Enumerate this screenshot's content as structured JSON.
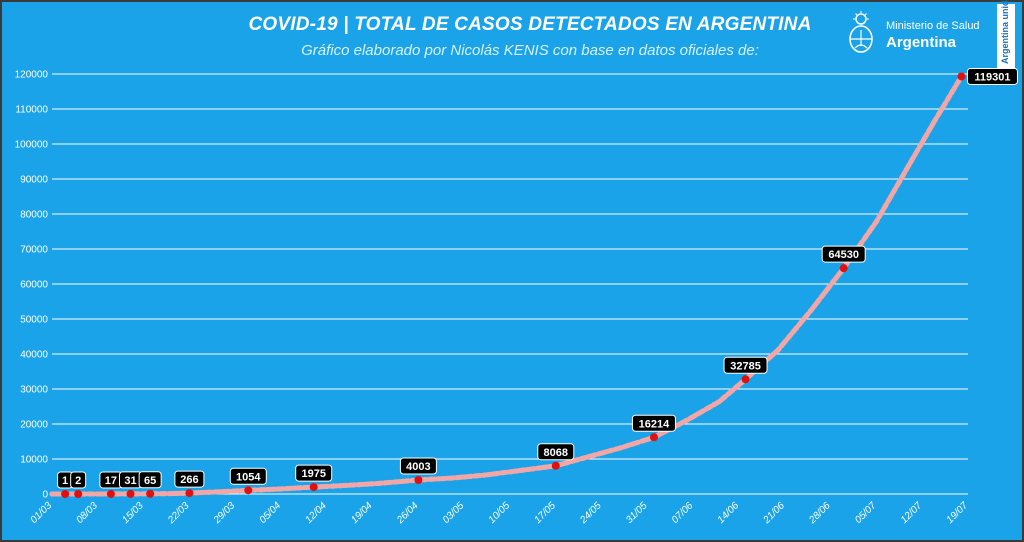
{
  "header": {
    "title": "COVID-19  |  TOTAL DE CASOS DETECTADOS EN ARGENTINA",
    "subtitle": "Gráfico elaborado por Nicolás KENIS con base en datos oficiales de:"
  },
  "logo": {
    "ministerio": "Ministerio de Salud",
    "country": "Argentina",
    "badge": "Argentina unida"
  },
  "colors": {
    "background": "#1aa3e8",
    "line": "#f3a6a6",
    "marker": "#e01010",
    "label_bg": "#000000",
    "grid": "#ffffff"
  },
  "chart_data": {
    "type": "line",
    "title": "COVID-19 | TOTAL DE CASOS DETECTADOS EN ARGENTINA",
    "xlabel": "",
    "ylabel": "",
    "x_range": [
      "2020-03-01",
      "2020-07-19"
    ],
    "ylim": [
      0,
      120000
    ],
    "grid": true,
    "yticks": [
      0,
      10000,
      20000,
      30000,
      40000,
      50000,
      60000,
      70000,
      80000,
      90000,
      100000,
      110000,
      120000
    ],
    "xtick_labels": [
      "01/03",
      "08/03",
      "15/03",
      "22/03",
      "29/03",
      "05/04",
      "12/04",
      "19/04",
      "26/04",
      "03/05",
      "10/05",
      "17/05",
      "24/05",
      "31/05",
      "07/06",
      "14/06",
      "21/06",
      "28/06",
      "05/07",
      "12/07",
      "19/07"
    ],
    "series": [
      {
        "points": [
          {
            "x": "2020-03-01",
            "y": 0
          },
          {
            "x": "2020-03-03",
            "y": 1
          },
          {
            "x": "2020-03-05",
            "y": 2
          },
          {
            "x": "2020-03-07",
            "y": 8
          },
          {
            "x": "2020-03-10",
            "y": 17
          },
          {
            "x": "2020-03-13",
            "y": 31
          },
          {
            "x": "2020-03-16",
            "y": 65
          },
          {
            "x": "2020-03-19",
            "y": 128
          },
          {
            "x": "2020-03-22",
            "y": 266
          },
          {
            "x": "2020-03-25",
            "y": 502
          },
          {
            "x": "2020-03-28",
            "y": 745
          },
          {
            "x": "2020-03-31",
            "y": 1054
          },
          {
            "x": "2020-04-05",
            "y": 1451
          },
          {
            "x": "2020-04-10",
            "y": 1975
          },
          {
            "x": "2020-04-15",
            "y": 2443
          },
          {
            "x": "2020-04-20",
            "y": 3031
          },
          {
            "x": "2020-04-26",
            "y": 4003
          },
          {
            "x": "2020-05-01",
            "y": 4532
          },
          {
            "x": "2020-05-06",
            "y": 5371
          },
          {
            "x": "2020-05-11",
            "y": 6563
          },
          {
            "x": "2020-05-17",
            "y": 8068
          },
          {
            "x": "2020-05-22",
            "y": 10649
          },
          {
            "x": "2020-05-27",
            "y": 13228
          },
          {
            "x": "2020-06-01",
            "y": 16214
          },
          {
            "x": "2020-06-06",
            "y": 21037
          },
          {
            "x": "2020-06-11",
            "y": 26437
          },
          {
            "x": "2020-06-15",
            "y": 32785
          },
          {
            "x": "2020-06-20",
            "y": 41204
          },
          {
            "x": "2020-06-25",
            "y": 52457
          },
          {
            "x": "2020-06-30",
            "y": 64530
          },
          {
            "x": "2020-07-05",
            "y": 77815
          },
          {
            "x": "2020-07-10",
            "y": 94060
          },
          {
            "x": "2020-07-14",
            "y": 106910
          },
          {
            "x": "2020-07-18",
            "y": 119301
          }
        ]
      }
    ],
    "annotations": [
      {
        "x": "2020-03-03",
        "y": 1,
        "label": "1"
      },
      {
        "x": "2020-03-05",
        "y": 2,
        "label": "2"
      },
      {
        "x": "2020-03-10",
        "y": 17,
        "label": "17"
      },
      {
        "x": "2020-03-13",
        "y": 31,
        "label": "31"
      },
      {
        "x": "2020-03-16",
        "y": 65,
        "label": "65"
      },
      {
        "x": "2020-03-22",
        "y": 266,
        "label": "266"
      },
      {
        "x": "2020-03-31",
        "y": 1054,
        "label": "1054"
      },
      {
        "x": "2020-04-10",
        "y": 1975,
        "label": "1975"
      },
      {
        "x": "2020-04-26",
        "y": 4003,
        "label": "4003"
      },
      {
        "x": "2020-05-17",
        "y": 8068,
        "label": "8068"
      },
      {
        "x": "2020-06-01",
        "y": 16214,
        "label": "16214"
      },
      {
        "x": "2020-06-15",
        "y": 32785,
        "label": "32785"
      },
      {
        "x": "2020-06-30",
        "y": 64530,
        "label": "64530"
      },
      {
        "x": "2020-07-18",
        "y": 119301,
        "label": "119301"
      }
    ]
  }
}
